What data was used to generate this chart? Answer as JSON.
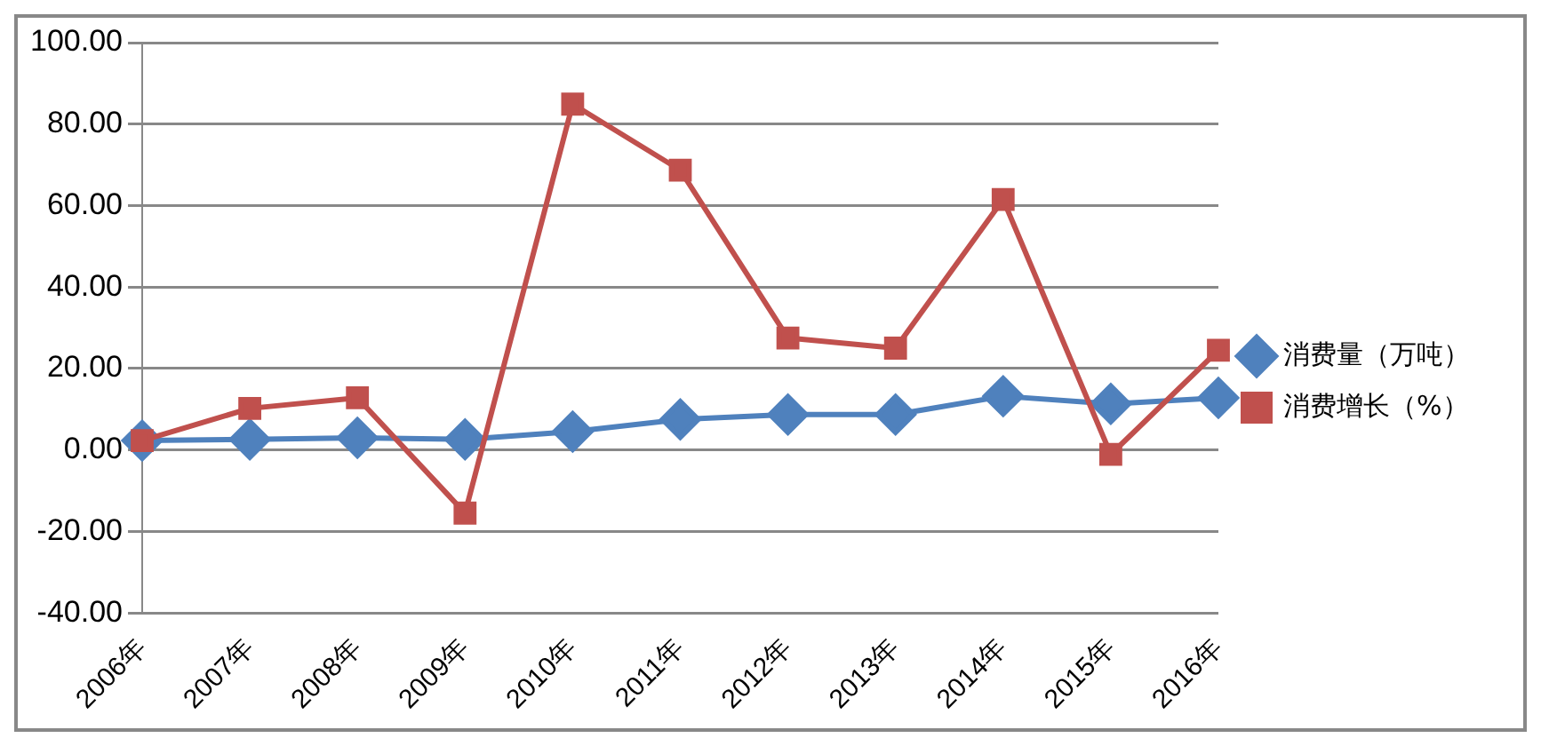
{
  "chart_data": {
    "type": "line",
    "categories": [
      "2006年",
      "2007年",
      "2008年",
      "2009年",
      "2010年",
      "2011年",
      "2012年",
      "2013年",
      "2014年",
      "2015年",
      "2016年"
    ],
    "series": [
      {
        "name": "消费增长（%）",
        "color": "#c0504d",
        "marker": "square",
        "values": [
          2.3,
          10.2,
          12.8,
          -15.5,
          84.9,
          68.7,
          27.5,
          25.0,
          61.5,
          -1.1,
          24.5
        ]
      },
      {
        "name": "消费量（万吨）",
        "color": "#4f81bd",
        "marker": "diamond",
        "values": [
          2.3,
          2.6,
          3.0,
          2.6,
          4.5,
          7.5,
          8.7,
          8.7,
          13.2,
          11.3,
          12.8
        ]
      }
    ],
    "ylim": [
      -40,
      100
    ],
    "yticks": [
      {
        "value": -40,
        "label": "-40.00"
      },
      {
        "value": -20,
        "label": "-20.00"
      },
      {
        "value": 0,
        "label": "0.00"
      },
      {
        "value": 20,
        "label": "20.00"
      },
      {
        "value": 40,
        "label": "40.00"
      },
      {
        "value": 60,
        "label": "60.00"
      },
      {
        "value": 80,
        "label": "80.00"
      },
      {
        "value": 100,
        "label": "100.00"
      }
    ],
    "grid": "y",
    "legend": "right"
  }
}
